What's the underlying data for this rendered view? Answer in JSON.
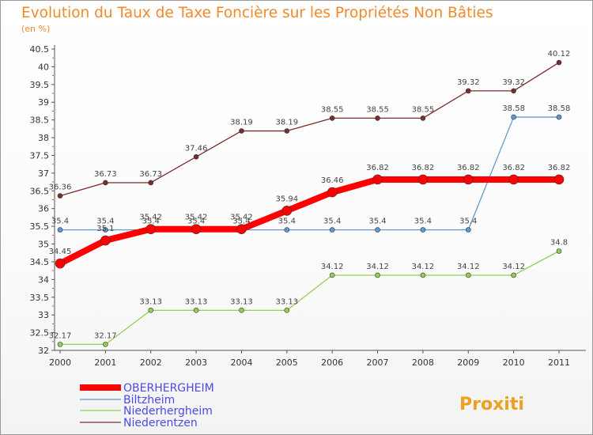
{
  "title": "Evolution du Taux de Taxe Foncière sur les Propriétés Non Bâties",
  "subtitle": "(en %)",
  "logo": "Proxiti",
  "chart_data": {
    "type": "line",
    "x": [
      2000,
      2001,
      2002,
      2003,
      2004,
      2005,
      2006,
      2007,
      2008,
      2009,
      2010,
      2011
    ],
    "ylim": [
      32,
      40.5
    ],
    "yticks": [
      32,
      32.5,
      33,
      33.5,
      34,
      34.5,
      35,
      35.5,
      36,
      36.5,
      37,
      37.5,
      38,
      38.5,
      39,
      39.5,
      40,
      40.5
    ],
    "grid": false,
    "legend_position": "bottom-left",
    "series": [
      {
        "name": "Niederentzen",
        "color": "#7b2c2c",
        "values": [
          36.36,
          36.73,
          36.73,
          37.46,
          38.19,
          38.19,
          38.55,
          38.55,
          38.55,
          39.32,
          39.32,
          40.12
        ]
      },
      {
        "name": "Biltzheim",
        "color": "#5b9bd5",
        "values": [
          35.4,
          35.4,
          35.4,
          35.4,
          35.4,
          35.4,
          35.4,
          35.4,
          35.4,
          35.4,
          38.58,
          38.58
        ]
      },
      {
        "name": "Niederhergheim",
        "color": "#92d050",
        "values": [
          32.17,
          32.17,
          33.13,
          33.13,
          33.13,
          33.13,
          34.12,
          34.12,
          34.12,
          34.12,
          34.12,
          34.8
        ]
      },
      {
        "name": "OBERHERGHEIM",
        "color": "#ff0000",
        "values": [
          34.45,
          35.1,
          35.42,
          35.42,
          35.42,
          35.94,
          36.46,
          36.82,
          36.82,
          36.82,
          36.82,
          36.82
        ]
      }
    ],
    "legend_order": [
      "OBERHERGHEIM",
      "Biltzheim",
      "Niederhergheim",
      "Niederentzen"
    ]
  }
}
